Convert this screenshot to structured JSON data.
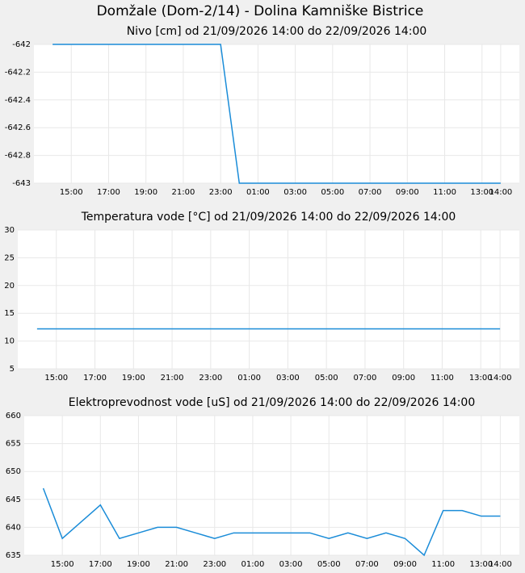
{
  "title": "Domžale (Dom-2/14) - Dolina Kamniške Bistrice",
  "chart_data": [
    {
      "type": "line",
      "title": "Nivo [cm] od 21/09/2026 14:00 do 22/09/2026 14:00",
      "categories": [
        null,
        "15:00",
        null,
        "17:00",
        null,
        "19:00",
        null,
        "21:00",
        null,
        "23:00",
        null,
        "01:00",
        null,
        "03:00",
        null,
        "05:00",
        null,
        "07:00",
        null,
        "09:00",
        null,
        "11:00",
        null,
        "13:00",
        "14:00"
      ],
      "values": [
        -642,
        -642,
        -642,
        -642,
        -642,
        -642,
        -642,
        -642,
        -642,
        -642,
        -643,
        -643,
        -643,
        -643,
        -643,
        -643,
        -643,
        -643,
        -643,
        -643,
        -643,
        -643,
        -643,
        -643,
        -643
      ],
      "color": "#1a8cd8",
      "ylim": [
        -643,
        -642
      ],
      "yticks": [
        -643,
        -642.8,
        -642.6,
        -642.4,
        -642.2,
        -642
      ],
      "grid": true
    },
    {
      "type": "line",
      "title": "Temperatura vode [°C] od 21/09/2026 14:00 do 22/09/2026 14:00",
      "categories": [
        null,
        "15:00",
        null,
        "17:00",
        null,
        "19:00",
        null,
        "21:00",
        null,
        "23:00",
        null,
        "01:00",
        null,
        "03:00",
        null,
        "05:00",
        null,
        "07:00",
        null,
        "09:00",
        null,
        "11:00",
        null,
        "13:00",
        "14:00"
      ],
      "values": [
        12.2,
        12.2,
        12.2,
        12.2,
        12.2,
        12.2,
        12.2,
        12.2,
        12.2,
        12.2,
        12.2,
        12.2,
        12.2,
        12.2,
        12.2,
        12.2,
        12.2,
        12.2,
        12.2,
        12.2,
        12.2,
        12.2,
        12.2,
        12.2,
        12.2
      ],
      "color": "#1a8cd8",
      "ylim": [
        5,
        30
      ],
      "yticks": [
        5,
        10,
        15,
        20,
        25,
        30
      ],
      "grid": true
    },
    {
      "type": "line",
      "title": "Elektroprevodnost vode [uS] od 21/09/2026 14:00 do 22/09/2026 14:00",
      "categories": [
        null,
        "15:00",
        null,
        "17:00",
        null,
        "19:00",
        null,
        "21:00",
        null,
        "23:00",
        null,
        "01:00",
        null,
        "03:00",
        null,
        "05:00",
        null,
        "07:00",
        null,
        "09:00",
        null,
        "11:00",
        null,
        "13:00",
        "14:00"
      ],
      "values": [
        647,
        638,
        641,
        644,
        638,
        639,
        640,
        640,
        639,
        638,
        639,
        639,
        639,
        639,
        639,
        638,
        639,
        638,
        639,
        638,
        635,
        643,
        643,
        642,
        642
      ],
      "color": "#1a8cd8",
      "ylim": [
        635,
        660
      ],
      "yticks": [
        635,
        640,
        645,
        650,
        655,
        660
      ],
      "grid": true
    }
  ]
}
